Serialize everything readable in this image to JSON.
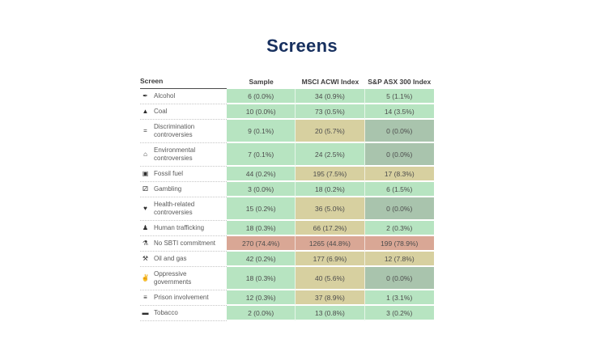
{
  "title": "Screens",
  "colors": {
    "title_navy": "#17305f",
    "green": "#b7e4c1",
    "tan": "#d7d0a0",
    "sage": "#a9c4ad",
    "salmon": "#d9a795",
    "header_text": "#3c3c3c",
    "cell_text": "#4c4c4c",
    "label_text": "#5a5a5a"
  },
  "table": {
    "columns": [
      "Screen",
      "Sample",
      "MSCI ACWI Index",
      "S&P ASX 300 Index"
    ],
    "rows": [
      {
        "icon_name": "cocktail-glass-icon",
        "glyph": "✒",
        "label": "Alcohol",
        "cells": [
          {
            "text": "6 (0.0%)",
            "tone": "green"
          },
          {
            "text": "34 (0.9%)",
            "tone": "green"
          },
          {
            "text": "5 (1.1%)",
            "tone": "green"
          }
        ]
      },
      {
        "icon_name": "coal-mountain-icon",
        "glyph": "▲",
        "label": "Coal",
        "cells": [
          {
            "text": "10 (0.0%)",
            "tone": "green"
          },
          {
            "text": "73 (0.5%)",
            "tone": "green"
          },
          {
            "text": "14 (3.5%)",
            "tone": "green"
          }
        ]
      },
      {
        "icon_name": "inequality-bars-icon",
        "glyph": "=",
        "label": "Discrimination controversies",
        "cells": [
          {
            "text": "9 (0.1%)",
            "tone": "green"
          },
          {
            "text": "20 (5.7%)",
            "tone": "tan"
          },
          {
            "text": "0 (0.0%)",
            "tone": "sage"
          }
        ]
      },
      {
        "icon_name": "factory-icon",
        "glyph": "⌂",
        "label": "Environmental controversies",
        "cells": [
          {
            "text": "7 (0.1%)",
            "tone": "green"
          },
          {
            "text": "24 (2.5%)",
            "tone": "green"
          },
          {
            "text": "0 (0.0%)",
            "tone": "sage"
          }
        ]
      },
      {
        "icon_name": "fuel-pump-icon",
        "glyph": "▣",
        "label": "Fossil fuel",
        "cells": [
          {
            "text": "44 (0.2%)",
            "tone": "green"
          },
          {
            "text": "195 (7.5%)",
            "tone": "tan"
          },
          {
            "text": "17 (8.3%)",
            "tone": "tan"
          }
        ]
      },
      {
        "icon_name": "dice-icon",
        "glyph": "⚂",
        "label": "Gambling",
        "cells": [
          {
            "text": "3 (0.0%)",
            "tone": "green"
          },
          {
            "text": "18 (0.2%)",
            "tone": "green"
          },
          {
            "text": "6 (1.5%)",
            "tone": "green"
          }
        ]
      },
      {
        "icon_name": "heart-icon",
        "glyph": "♥",
        "label": "Health-related controversies",
        "cells": [
          {
            "text": "15 (0.2%)",
            "tone": "green"
          },
          {
            "text": "36 (5.0%)",
            "tone": "tan"
          },
          {
            "text": "0 (0.0%)",
            "tone": "sage"
          }
        ]
      },
      {
        "icon_name": "person-icon",
        "glyph": "♟",
        "label": "Human trafficking",
        "cells": [
          {
            "text": "18 (0.3%)",
            "tone": "green"
          },
          {
            "text": "66 (17.2%)",
            "tone": "tan"
          },
          {
            "text": "2 (0.3%)",
            "tone": "green"
          }
        ]
      },
      {
        "icon_name": "thermometer-icon",
        "glyph": "⚗",
        "label": "No SBTI commitment",
        "cells": [
          {
            "text": "270 (74.4%)",
            "tone": "salmon"
          },
          {
            "text": "1265 (44.8%)",
            "tone": "salmon"
          },
          {
            "text": "199 (78.9%)",
            "tone": "salmon"
          }
        ]
      },
      {
        "icon_name": "oil-pump-icon",
        "glyph": "⚒",
        "label": "Oil and gas",
        "cells": [
          {
            "text": "42 (0.2%)",
            "tone": "green"
          },
          {
            "text": "177 (6.9%)",
            "tone": "tan"
          },
          {
            "text": "12 (7.8%)",
            "tone": "tan"
          }
        ]
      },
      {
        "icon_name": "fist-icon",
        "glyph": "✌",
        "label": "Oppressive governments",
        "cells": [
          {
            "text": "18 (0.3%)",
            "tone": "green"
          },
          {
            "text": "40 (5.6%)",
            "tone": "tan"
          },
          {
            "text": "0 (0.0%)",
            "tone": "sage"
          }
        ]
      },
      {
        "icon_name": "prison-bars-icon",
        "glyph": "≡",
        "label": "Prison involvement",
        "cells": [
          {
            "text": "12 (0.3%)",
            "tone": "green"
          },
          {
            "text": "37 (8.9%)",
            "tone": "tan"
          },
          {
            "text": "1 (3.1%)",
            "tone": "green"
          }
        ]
      },
      {
        "icon_name": "cigarette-icon",
        "glyph": "▬",
        "label": "Tobacco",
        "cells": [
          {
            "text": "2 (0.0%)",
            "tone": "green"
          },
          {
            "text": "13 (0.8%)",
            "tone": "green"
          },
          {
            "text": "3 (0.2%)",
            "tone": "green"
          }
        ]
      }
    ]
  },
  "chart_data": {
    "type": "table",
    "title": "Screens",
    "columns": [
      "Screen",
      "Sample",
      "MSCI ACWI Index",
      "S&P ASX 300 Index"
    ],
    "rows": [
      [
        "Alcohol",
        "6 (0.0%)",
        "34 (0.9%)",
        "5 (1.1%)"
      ],
      [
        "Coal",
        "10 (0.0%)",
        "73 (0.5%)",
        "14 (3.5%)"
      ],
      [
        "Discrimination controversies",
        "9 (0.1%)",
        "20 (5.7%)",
        "0 (0.0%)"
      ],
      [
        "Environmental controversies",
        "7 (0.1%)",
        "24 (2.5%)",
        "0 (0.0%)"
      ],
      [
        "Fossil fuel",
        "44 (0.2%)",
        "195 (7.5%)",
        "17 (8.3%)"
      ],
      [
        "Gambling",
        "3 (0.0%)",
        "18 (0.2%)",
        "6 (1.5%)"
      ],
      [
        "Health-related controversies",
        "15 (0.2%)",
        "36 (5.0%)",
        "0 (0.0%)"
      ],
      [
        "Human trafficking",
        "18 (0.3%)",
        "66 (17.2%)",
        "2 (0.3%)"
      ],
      [
        "No SBTI commitment",
        "270 (74.4%)",
        "1265 (44.8%)",
        "199 (78.9%)"
      ],
      [
        "Oil and gas",
        "42 (0.2%)",
        "177 (6.9%)",
        "12 (7.8%)"
      ],
      [
        "Oppressive governments",
        "18 (0.3%)",
        "40 (5.6%)",
        "0 (0.0%)"
      ],
      [
        "Prison involvement",
        "12 (0.3%)",
        "37 (8.9%)",
        "1 (3.1%)"
      ],
      [
        "Tobacco",
        "2 (0.0%)",
        "13 (0.8%)",
        "3 (0.2%)"
      ]
    ],
    "cell_tones": [
      [
        "green",
        "green",
        "green"
      ],
      [
        "green",
        "green",
        "green"
      ],
      [
        "green",
        "tan",
        "sage"
      ],
      [
        "green",
        "green",
        "sage"
      ],
      [
        "green",
        "tan",
        "tan"
      ],
      [
        "green",
        "green",
        "green"
      ],
      [
        "green",
        "tan",
        "sage"
      ],
      [
        "green",
        "tan",
        "green"
      ],
      [
        "salmon",
        "salmon",
        "salmon"
      ],
      [
        "green",
        "tan",
        "tan"
      ],
      [
        "green",
        "tan",
        "sage"
      ],
      [
        "green",
        "tan",
        "green"
      ],
      [
        "green",
        "green",
        "green"
      ]
    ],
    "layout_hints": {
      "grid": "dotted row separators under label column",
      "legend": "none",
      "tone_meaning": {
        "green": "low exposure",
        "tan": "medium exposure",
        "salmon": "high exposure",
        "sage": "zero holdings"
      }
    }
  }
}
